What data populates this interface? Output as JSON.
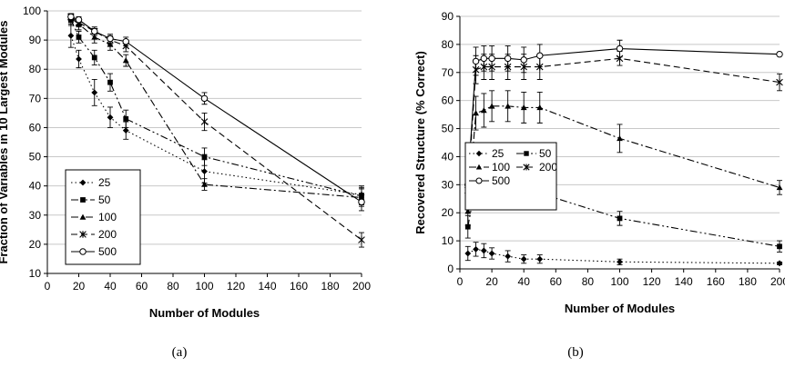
{
  "chart_data": [
    {
      "type": "line",
      "panel_caption": "(a)",
      "xlabel": "Number of Modules",
      "ylabel": "Fraction of Variables in 10 Largest Modules",
      "xlim": [
        0,
        200
      ],
      "ylim": [
        10,
        100
      ],
      "xticks": [
        0,
        20,
        40,
        60,
        80,
        100,
        120,
        140,
        160,
        180,
        200
      ],
      "yticks": [
        10,
        20,
        30,
        40,
        50,
        60,
        70,
        80,
        90,
        100
      ],
      "grid": "horizontal",
      "legend_position": "lower-left",
      "legend_entries": [
        "25",
        "50",
        "100",
        "200",
        "500"
      ],
      "series": [
        {
          "name": "25",
          "marker": "diamond",
          "dash": "dot",
          "x": [
            15,
            20,
            30,
            40,
            50,
            100,
            200
          ],
          "y": [
            91.5,
            83.5,
            72,
            63.5,
            59,
            45,
            37
          ],
          "err": [
            4,
            3,
            4.5,
            3.5,
            3,
            4,
            3
          ]
        },
        {
          "name": "50",
          "marker": "square",
          "dash": "dashdotdot",
          "x": [
            15,
            20,
            30,
            40,
            50,
            100,
            200
          ],
          "y": [
            97,
            91,
            84,
            75.5,
            63,
            50,
            36.5
          ],
          "err": [
            2,
            2,
            2.5,
            3,
            3,
            3,
            3
          ]
        },
        {
          "name": "100",
          "marker": "triangle",
          "dash": "dashdot",
          "x": [
            15,
            20,
            30,
            40,
            50,
            100,
            200
          ],
          "y": [
            97.5,
            95.5,
            91,
            88.5,
            83,
            40.5,
            36
          ],
          "err": [
            1.5,
            2,
            2,
            2,
            2,
            2,
            3
          ]
        },
        {
          "name": "200",
          "marker": "star",
          "dash": "dash",
          "x": [
            15,
            20,
            30,
            40,
            50,
            100,
            200
          ],
          "y": [
            98,
            96,
            93,
            90,
            88,
            62,
            21.5
          ],
          "err": [
            1,
            1.5,
            1.5,
            1.5,
            2,
            3,
            2.5
          ]
        },
        {
          "name": "500",
          "marker": "circle",
          "dash": "solid",
          "x": [
            15,
            20,
            30,
            40,
            50,
            100,
            200
          ],
          "y": [
            98,
            97,
            93,
            90.5,
            89.5,
            70,
            34.5
          ],
          "err": [
            1,
            1,
            1,
            1.5,
            1.5,
            2,
            3
          ]
        }
      ]
    },
    {
      "type": "line",
      "panel_caption": "(b)",
      "xlabel": "Number of Modules",
      "ylabel": "Recovered Structure (% Correct)",
      "xlim": [
        0,
        200
      ],
      "ylim": [
        0,
        90
      ],
      "xticks": [
        0,
        20,
        40,
        60,
        80,
        100,
        120,
        140,
        160,
        180,
        200
      ],
      "yticks": [
        0,
        10,
        20,
        30,
        40,
        50,
        60,
        70,
        80,
        90
      ],
      "grid": "horizontal",
      "legend_position": "middle-left",
      "legend_entries": [
        "25",
        "50",
        "100",
        "200",
        "500"
      ],
      "series": [
        {
          "name": "25",
          "marker": "diamond",
          "dash": "dot",
          "x": [
            5,
            10,
            15,
            20,
            30,
            40,
            50,
            100,
            200
          ],
          "y": [
            5.5,
            7,
            6.5,
            5.5,
            4.5,
            3.5,
            3.5,
            2.5,
            2
          ],
          "err": [
            2.5,
            2.5,
            2.5,
            2,
            2,
            1.5,
            1.5,
            1,
            0.5
          ]
        },
        {
          "name": "50",
          "marker": "square",
          "dash": "dashdotdot",
          "x": [
            5,
            10,
            15,
            20,
            30,
            40,
            50,
            100,
            200
          ],
          "y": [
            15,
            30.5,
            31,
            32,
            31.5,
            27.5,
            27,
            18,
            8
          ],
          "err": [
            4,
            5,
            5,
            5,
            5,
            3.5,
            3.5,
            2.5,
            2
          ]
        },
        {
          "name": "100",
          "marker": "triangle",
          "dash": "dashdot",
          "x": [
            5,
            10,
            15,
            20,
            30,
            40,
            50,
            100,
            200
          ],
          "y": [
            20.5,
            55.5,
            56.5,
            58,
            58,
            57.5,
            57.5,
            46.5,
            29
          ],
          "err": [
            5,
            6,
            6,
            5.5,
            5.5,
            5.5,
            5.5,
            5,
            2.5
          ]
        },
        {
          "name": "200",
          "marker": "star",
          "dash": "dash",
          "x": [
            5,
            10,
            15,
            20,
            30,
            40,
            50,
            100,
            200
          ],
          "y": [
            28,
            71,
            72,
            72,
            72,
            72,
            72,
            75,
            66.5
          ],
          "err": [
            6,
            5,
            4.5,
            4.5,
            4.5,
            4.5,
            4.5,
            2.5,
            3
          ]
        },
        {
          "name": "500",
          "marker": "circle",
          "dash": "solid",
          "x": [
            5,
            10,
            15,
            20,
            30,
            40,
            50,
            100,
            200
          ],
          "y": [
            30,
            74,
            75,
            75,
            75,
            74.5,
            76,
            78.5,
            76.5
          ],
          "err": [
            5,
            5,
            4.5,
            4.5,
            4.5,
            4.5,
            4,
            3,
            0.5
          ]
        }
      ]
    }
  ]
}
